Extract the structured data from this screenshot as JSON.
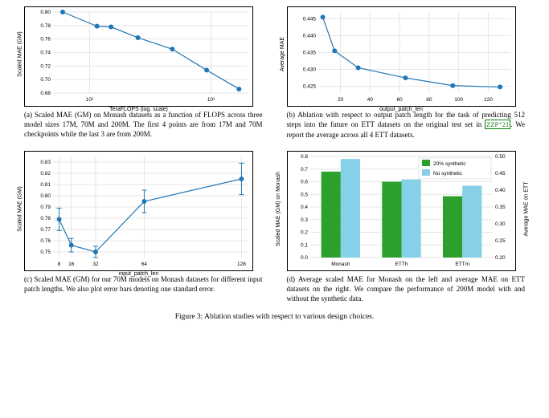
{
  "figure_caption": "Figure 3: Ablation studies with respect to various design choices.",
  "panel_a": {
    "type": "line",
    "xlabel": "TeraFLOPS (log. scale)",
    "ylabel": "Scaled MAE (GM)",
    "line_color": "#1f77b4",
    "marker": "circle",
    "marker_size": 3,
    "line_width": 1.2,
    "grid_color": "#e6e6e6",
    "xscale": "log",
    "xticks": [
      100,
      1000
    ],
    "xtick_labels": [
      "10²",
      "10³"
    ],
    "ylim": [
      0.68,
      0.8
    ],
    "yticks": [
      0.68,
      0.7,
      0.72,
      0.74,
      0.76,
      0.78,
      0.8
    ],
    "x": [
      60,
      115,
      150,
      250,
      480,
      920,
      1700
    ],
    "y": [
      0.8,
      0.779,
      0.778,
      0.762,
      0.745,
      0.714,
      0.686
    ],
    "caption": "(a) Scaled MAE (GM) on Monash datasets as a function of FLOPS across three model sizes 17M, 70M and 200M. The first 4 points are from 17M and 70M checkpoints while the last 3 are from 200M."
  },
  "panel_b": {
    "type": "line",
    "xlabel": "output_patch_len",
    "ylabel": "Average MAE",
    "line_color": "#1f77b4",
    "marker": "circle",
    "marker_size": 3,
    "line_width": 1.2,
    "grid_color": "#e6e6e6",
    "xlim": [
      5,
      135
    ],
    "xticks": [
      20,
      40,
      60,
      80,
      100,
      120
    ],
    "ylim": [
      0.423,
      0.447
    ],
    "yticks": [
      0.425,
      0.43,
      0.435,
      0.44,
      0.445
    ],
    "x": [
      8,
      16,
      32,
      64,
      96,
      128
    ],
    "y": [
      0.4455,
      0.4355,
      0.4305,
      0.4275,
      0.4252,
      0.4248
    ],
    "caption_pre": "(b) Ablation with respect to output patch length for the task of predicting 512 steps into the future on ETT datasets on the original test set in ",
    "citation": "ZZP⁺21",
    "caption_post": ". We report the average across all 4 ETT datasets."
  },
  "panel_c": {
    "type": "line_errorbar",
    "xlabel": "input_patch_len",
    "ylabel": "Scaled MAE (GM)",
    "line_color": "#1f77b4",
    "marker": "circle",
    "marker_size": 3,
    "line_width": 1.2,
    "grid_color": "#e6e6e6",
    "xlim": [
      4,
      132
    ],
    "xticks": [
      8,
      16,
      32,
      64,
      128
    ],
    "ylim": [
      0.745,
      0.835
    ],
    "yticks": [
      0.75,
      0.76,
      0.77,
      0.78,
      0.79,
      0.8,
      0.81,
      0.82,
      0.83
    ],
    "x": [
      8,
      16,
      32,
      64,
      128
    ],
    "y": [
      0.779,
      0.756,
      0.75,
      0.795,
      0.815
    ],
    "err": [
      0.01,
      0.006,
      0.005,
      0.01,
      0.014
    ],
    "caption": "(c) Scaled MAE (GM) for our 70M models on Monash datasets for different input patch lengths. We also plot error bars denoting one standard error."
  },
  "panel_d": {
    "type": "bar_dual_axis",
    "xlabel": "",
    "ylabel_left": "Scaled MAE (GM) on Monash",
    "ylabel_right": "Average MAE on ETT",
    "grid_color": "#e6e6e6",
    "categories": [
      "Monash",
      "ETTh",
      "ETTm"
    ],
    "series": [
      {
        "name": "20% synthetic",
        "color": "#2ca02c"
      },
      {
        "name": "No synthetic",
        "color": "#86d0e8"
      }
    ],
    "bar_width": 0.32,
    "left_ylim": [
      0,
      0.8
    ],
    "left_yticks": [
      0.0,
      0.1,
      0.2,
      0.3,
      0.4,
      0.5,
      0.6,
      0.7,
      0.8
    ],
    "right_ylim": [
      0.2,
      0.5
    ],
    "right_yticks": [
      0.2,
      0.25,
      0.3,
      0.35,
      0.4,
      0.45,
      0.5
    ],
    "values_synth_left": [
      0.68,
      null,
      null
    ],
    "values_nosynth_left": [
      0.78,
      null,
      null
    ],
    "values_synth_right": [
      null,
      0.425,
      0.382
    ],
    "values_nosynth_right": [
      null,
      0.432,
      0.413
    ],
    "caption": "(d) Average scaled MAE for Monash on the left and average MAE on ETT datasets on the right. We compare the performance of 200M model with and without the synthetic data."
  }
}
